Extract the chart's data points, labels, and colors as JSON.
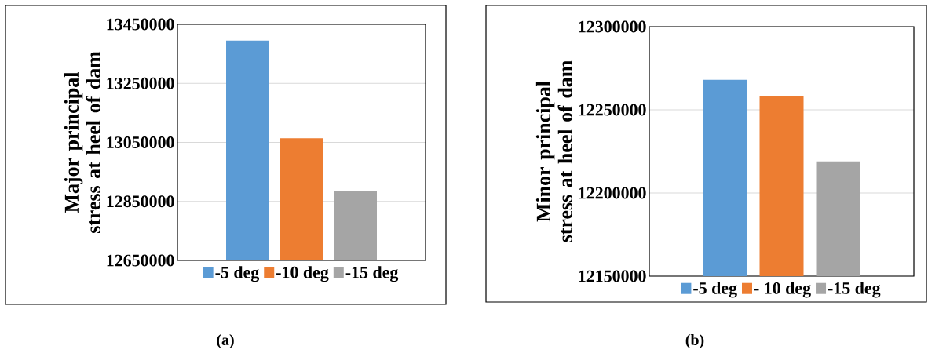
{
  "chart_data": [
    {
      "type": "bar",
      "ylabel": "Major principal stress at heel of dam",
      "categories": [
        null
      ],
      "series": [
        {
          "name": "-5 deg",
          "color": "#5b9bd5",
          "values": [
            13395000
          ]
        },
        {
          "name": "-10 deg",
          "color": "#ed7d31",
          "values": [
            13064000
          ]
        },
        {
          "name": "-15 deg",
          "color": "#a5a5a5",
          "values": [
            12886000
          ]
        }
      ],
      "ylim": [
        12650000,
        13450000
      ],
      "yticks": [
        12650000,
        12850000,
        13050000,
        13250000,
        13450000
      ],
      "grid": "y",
      "legend": "bottom",
      "annotations": [
        "(a)"
      ]
    },
    {
      "type": "bar",
      "ylabel": "Minor principal stress at heel of dam",
      "categories": [
        null
      ],
      "series": [
        {
          "name": "-5 deg",
          "color": "#5b9bd5",
          "values": [
            12268000
          ]
        },
        {
          "name": "- 10 deg",
          "color": "#ed7d31",
          "values": [
            12258000
          ]
        },
        {
          "name": "-15 deg",
          "color": "#a5a5a5",
          "values": [
            12219000
          ]
        }
      ],
      "ylim": [
        12150000,
        12300000
      ],
      "yticks": [
        12150000,
        12200000,
        12250000,
        12300000
      ],
      "grid": "y",
      "legend": "bottom",
      "annotations": [
        "(b)"
      ]
    }
  ]
}
